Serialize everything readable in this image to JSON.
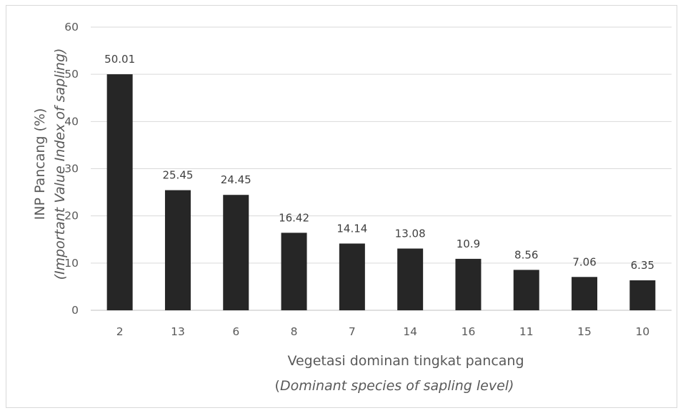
{
  "chart_data": {
    "type": "bar",
    "categories": [
      "2",
      "13",
      "6",
      "8",
      "7",
      "14",
      "16",
      "11",
      "15",
      "10"
    ],
    "values": [
      50.01,
      25.45,
      24.45,
      16.42,
      14.14,
      13.08,
      10.9,
      8.56,
      7.06,
      6.35
    ],
    "data_labels": [
      "50.01",
      "25.45",
      "24.45",
      "16.42",
      "14.14",
      "13.08",
      "10.9",
      "8.56",
      "7.06",
      "6.35"
    ],
    "xlabel": "Vegetasi dominan tingkat pancang",
    "xlabel_sub_prefix": "(",
    "xlabel_sub": "Dominant species of sapling level)",
    "ylabel": "INP Pancang (%)",
    "ylabel_sub": "(Important Value Index of sapling)",
    "ylim": [
      0,
      60
    ],
    "yticks": [
      0,
      10,
      20,
      30,
      40,
      50,
      60
    ],
    "ytick_labels": [
      "0",
      "10",
      "20",
      "30",
      "40",
      "50",
      "60"
    ],
    "grid": true,
    "legend": "none",
    "colors": {
      "bar": "#262626",
      "grid": "#d9d9d9",
      "text": "#595959"
    }
  }
}
